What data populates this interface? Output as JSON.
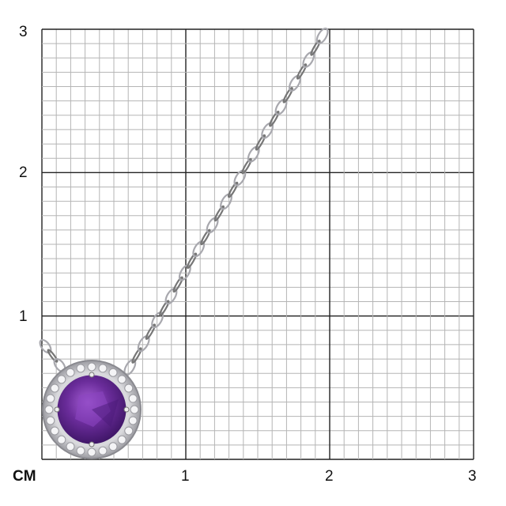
{
  "scale": {
    "unit_label": "CM",
    "y_ticks": [
      "1",
      "2",
      "3"
    ],
    "x_ticks": [
      "1",
      "2",
      "3"
    ],
    "range_cm": [
      0,
      3
    ],
    "minor_divisions_per_cm": 10
  },
  "colors": {
    "minor_grid": "#b5b5b5",
    "major_grid": "#222222",
    "gem": "#6a2c9a",
    "metal": "#c9c9cc"
  },
  "item": {
    "gem_shape": "round",
    "halo": "diamond",
    "chain": "cable"
  }
}
